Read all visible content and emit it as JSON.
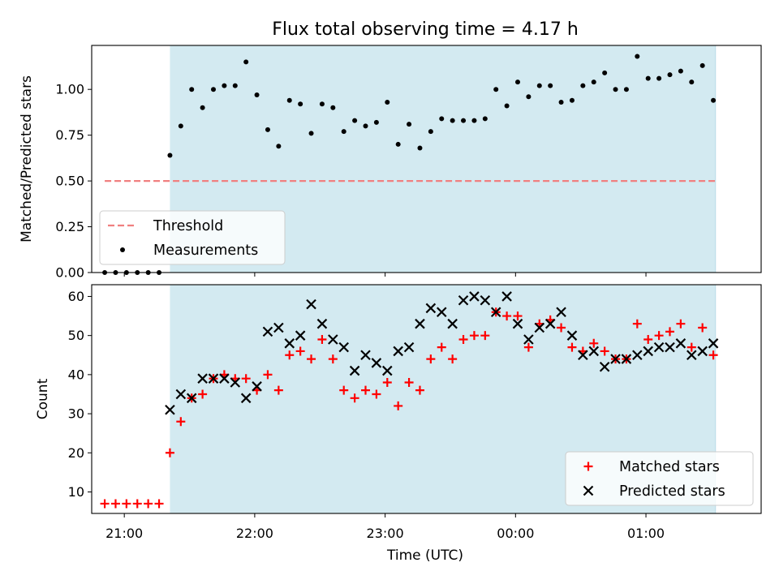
{
  "figure": {
    "title": "Flux total observing time = 4.17 h",
    "xlabel": "Time (UTC)"
  },
  "chart_data": [
    {
      "type": "scatter",
      "title": "Flux total observing time = 4.17 h",
      "ylabel": "Matched/Predicted stars",
      "ylim": [
        0,
        1.24
      ],
      "xlim": [
        "20:45",
        "01:53"
      ],
      "yticks": [
        "0.00",
        "0.25",
        "0.50",
        "0.75",
        "1.00"
      ],
      "xticks": [
        "21:00",
        "22:00",
        "23:00",
        "00:00",
        "01:00"
      ],
      "shaded_region": {
        "start": "21:21",
        "end": "01:32",
        "color": "#d3eaf1"
      },
      "legend": {
        "placement": "lower-left",
        "entries": [
          "Threshold",
          "Measurements"
        ]
      },
      "series": [
        {
          "name": "Threshold",
          "style": "dashed-line",
          "color": "#f08080",
          "x": [
            "20:51",
            "01:32"
          ],
          "values": [
            0.5,
            0.5
          ]
        },
        {
          "name": "Measurements",
          "style": "dot",
          "color": "#000000",
          "x": [
            "20:51",
            "20:56",
            "21:01",
            "21:06",
            "21:11",
            "21:16",
            "21:21",
            "21:26",
            "21:31",
            "21:36",
            "21:41",
            "21:46",
            "21:51",
            "21:56",
            "22:01",
            "22:06",
            "22:11",
            "22:16",
            "22:21",
            "22:26",
            "22:31",
            "22:36",
            "22:41",
            "22:46",
            "22:51",
            "22:56",
            "23:01",
            "23:06",
            "23:11",
            "23:16",
            "23:21",
            "23:26",
            "23:31",
            "23:36",
            "23:41",
            "23:46",
            "23:51",
            "23:56",
            "00:01",
            "00:06",
            "00:11",
            "00:16",
            "00:21",
            "00:26",
            "00:31",
            "00:36",
            "00:41",
            "00:46",
            "00:51",
            "00:56",
            "01:01",
            "01:06",
            "01:11",
            "01:16",
            "01:21",
            "01:26",
            "01:31"
          ],
          "values": [
            0,
            0,
            0,
            0,
            0,
            0,
            0.64,
            0.8,
            1.0,
            0.9,
            1.0,
            1.02,
            1.02,
            1.15,
            0.97,
            0.78,
            0.69,
            0.94,
            0.92,
            0.76,
            0.92,
            0.9,
            0.77,
            0.83,
            0.8,
            0.82,
            0.93,
            0.7,
            0.81,
            0.68,
            0.77,
            0.84,
            0.83,
            0.83,
            0.83,
            0.84,
            1.0,
            0.91,
            1.04,
            0.96,
            1.02,
            1.02,
            0.93,
            0.94,
            1.02,
            1.04,
            1.09,
            1.0,
            1.0,
            1.18,
            1.06,
            1.06,
            1.08,
            1.1,
            1.04,
            1.13,
            0.94
          ]
        }
      ]
    },
    {
      "type": "scatter",
      "ylabel": "Count",
      "ylim": [
        4.5,
        63
      ],
      "xlim": [
        "20:45",
        "01:53"
      ],
      "yticks": [
        "10",
        "20",
        "30",
        "40",
        "50",
        "60"
      ],
      "xticks": [
        "21:00",
        "22:00",
        "23:00",
        "00:00",
        "01:00"
      ],
      "shaded_region": {
        "start": "21:21",
        "end": "01:32",
        "color": "#d3eaf1"
      },
      "legend": {
        "placement": "lower-right",
        "entries": [
          "Matched stars",
          "Predicted stars"
        ]
      },
      "series": [
        {
          "name": "Matched stars",
          "marker": "plus",
          "color": "#ff0000",
          "x": [
            "20:51",
            "20:56",
            "21:01",
            "21:06",
            "21:11",
            "21:16",
            "21:21",
            "21:26",
            "21:31",
            "21:36",
            "21:41",
            "21:46",
            "21:51",
            "21:56",
            "22:01",
            "22:06",
            "22:11",
            "22:16",
            "22:21",
            "22:26",
            "22:31",
            "22:36",
            "22:41",
            "22:46",
            "22:51",
            "22:56",
            "23:01",
            "23:06",
            "23:11",
            "23:16",
            "23:21",
            "23:26",
            "23:31",
            "23:36",
            "23:41",
            "23:46",
            "23:51",
            "23:56",
            "00:01",
            "00:06",
            "00:11",
            "00:16",
            "00:21",
            "00:26",
            "00:31",
            "00:36",
            "00:41",
            "00:46",
            "00:51",
            "00:56",
            "01:01",
            "01:06",
            "01:11",
            "01:16",
            "01:21",
            "01:26",
            "01:31"
          ],
          "values": [
            7,
            7,
            7,
            7,
            7,
            7,
            20,
            28,
            34,
            35,
            39,
            40,
            39,
            39,
            36,
            40,
            36,
            45,
            46,
            44,
            49,
            44,
            36,
            34,
            36,
            35,
            38,
            32,
            38,
            36,
            44,
            47,
            44,
            49,
            50,
            50,
            56,
            55,
            55,
            47,
            53,
            54,
            52,
            47,
            46,
            48,
            46,
            44,
            44,
            53,
            49,
            50,
            51,
            53,
            47,
            52,
            45
          ]
        },
        {
          "name": "Predicted stars",
          "marker": "x",
          "color": "#000000",
          "x": [
            "21:21",
            "21:26",
            "21:31",
            "21:36",
            "21:41",
            "21:46",
            "21:51",
            "21:56",
            "22:01",
            "22:06",
            "22:11",
            "22:16",
            "22:21",
            "22:26",
            "22:31",
            "22:36",
            "22:41",
            "22:46",
            "22:51",
            "22:56",
            "23:01",
            "23:06",
            "23:11",
            "23:16",
            "23:21",
            "23:26",
            "23:31",
            "23:36",
            "23:41",
            "23:46",
            "23:51",
            "23:56",
            "00:01",
            "00:06",
            "00:11",
            "00:16",
            "00:21",
            "00:26",
            "00:31",
            "00:36",
            "00:41",
            "00:46",
            "00:51",
            "00:56",
            "01:01",
            "01:06",
            "01:11",
            "01:16",
            "01:21",
            "01:26",
            "01:31"
          ],
          "values": [
            31,
            35,
            34,
            39,
            39,
            39,
            38,
            34,
            37,
            51,
            52,
            48,
            50,
            58,
            53,
            49,
            47,
            41,
            45,
            43,
            41,
            46,
            47,
            53,
            57,
            56,
            53,
            59,
            60,
            59,
            56,
            60,
            53,
            49,
            52,
            53,
            56,
            50,
            45,
            46,
            42,
            44,
            44,
            45,
            46,
            47,
            47,
            48,
            45,
            46,
            48
          ]
        }
      ]
    }
  ]
}
